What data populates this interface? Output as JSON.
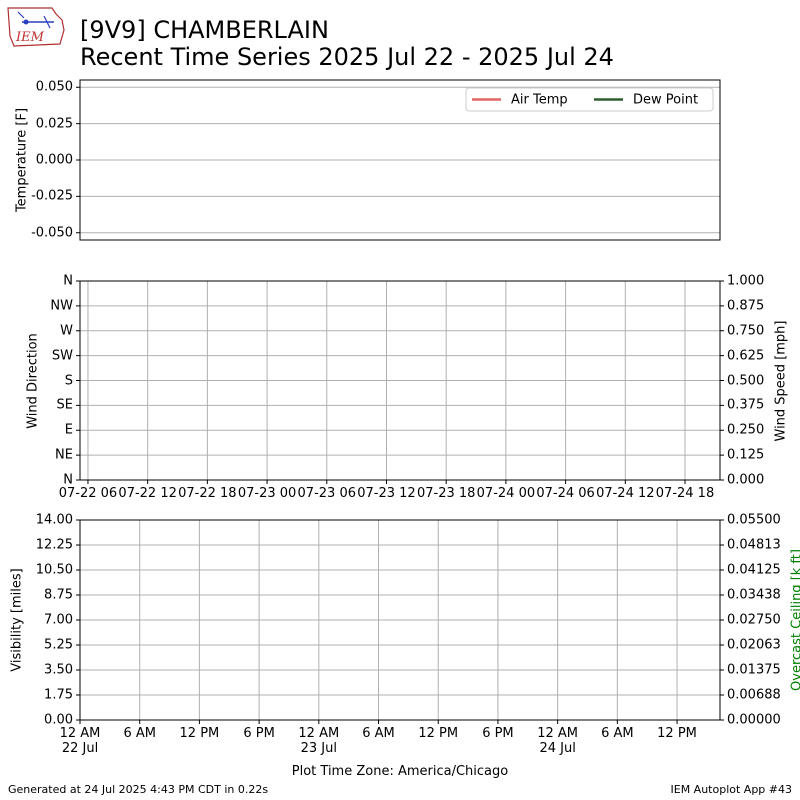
{
  "header": {
    "logo_text": "IEM",
    "title": "[9V9] CHAMBERLAIN",
    "subtitle": "Recent Time Series 2025 Jul 22 - 2025 Jul 24"
  },
  "footer": {
    "left": "Generated at 24 Jul 2025 4:43 PM CDT in 0.22s",
    "right": "IEM Autoplot App #43"
  },
  "chart_data": [
    {
      "type": "line",
      "ylabel": "Temperature [F]",
      "grid": "y",
      "legend": "upper right",
      "x": [],
      "series": [
        {
          "name": "Air Temp",
          "color": "#e06666",
          "values": []
        },
        {
          "name": "Dew Point",
          "color": "#2e5e2e",
          "values": []
        }
      ],
      "ylim": [
        -0.055,
        0.055
      ],
      "yticks": [
        {
          "value": -0.05,
          "label": "-0.050"
        },
        -0.025,
        {
          "value": 0,
          "label": "0.000"
        },
        0.025,
        {
          "value": 0.05,
          "label": "0.050"
        }
      ]
    },
    {
      "type": "line",
      "ylabel": "Wind Direction",
      "y2label": "Wind Speed [mph]",
      "grid": "both",
      "xlim": [
        "2025-07-22T05:12",
        "2025-07-24T21:31"
      ],
      "xticks": [
        {
          "value": "2025-07-22T06:00",
          "label": "07-22 06"
        },
        {
          "value": "2025-07-22T12:00",
          "label": "07-22 12"
        },
        {
          "value": "2025-07-22T18:00",
          "label": "07-22 18"
        },
        {
          "value": "2025-07-23T00:00",
          "label": "07-23 00"
        },
        {
          "value": "2025-07-23T06:00",
          "label": "07-23 06"
        },
        {
          "value": "2025-07-23T12:00",
          "label": "07-23 12"
        },
        {
          "value": "2025-07-23T18:00",
          "label": "07-23 18"
        },
        {
          "value": "2025-07-24T00:00",
          "label": "07-24 00"
        },
        {
          "value": "2025-07-24T06:00",
          "label": "07-24 06"
        },
        {
          "value": "2025-07-24T12:00",
          "label": "07-24 12"
        },
        {
          "value": "2025-07-24T18:00",
          "label": "07-24 18"
        }
      ],
      "ylim": [
        0,
        360
      ],
      "yticks": [
        {
          "value": 0,
          "label": "N"
        },
        {
          "value": 45,
          "label": "NE"
        },
        {
          "value": 90,
          "label": "E"
        },
        {
          "value": 135,
          "label": "SE"
        },
        {
          "value": 180,
          "label": "S"
        },
        {
          "value": 225,
          "label": "SW"
        },
        {
          "value": 270,
          "label": "W"
        },
        {
          "value": 315,
          "label": "NW"
        },
        {
          "value": 360,
          "label": "N"
        }
      ],
      "y2lim": [
        0,
        1
      ],
      "y2ticks": [
        {
          "value": 0,
          "label": "0.000"
        },
        0.125,
        {
          "value": 0.25,
          "label": "0.250"
        },
        0.375,
        {
          "value": 0.5,
          "label": "0.500"
        },
        0.625,
        {
          "value": 0.75,
          "label": "0.750"
        },
        0.875,
        {
          "value": 1,
          "label": "1.000"
        }
      ]
    },
    {
      "type": "line",
      "ylabel": "Visibility [miles]",
      "y2label": "Overcast Ceiling [k ft]",
      "y2label_color": "#008000",
      "xlabel": "Plot Time Zone: America/Chicago",
      "grid": "both",
      "xlim": [
        "2025-07-22T00:00",
        "2025-07-24T16:19"
      ],
      "xticks": [
        {
          "value": "2025-07-22T00:00",
          "label": "12 AM\n22 Jul"
        },
        {
          "value": "2025-07-22T06:00",
          "label": "6 AM"
        },
        {
          "value": "2025-07-22T12:00",
          "label": "12 PM"
        },
        {
          "value": "2025-07-22T18:00",
          "label": "6 PM"
        },
        {
          "value": "2025-07-23T00:00",
          "label": "12 AM\n23 Jul"
        },
        {
          "value": "2025-07-23T06:00",
          "label": "6 AM"
        },
        {
          "value": "2025-07-23T12:00",
          "label": "12 PM"
        },
        {
          "value": "2025-07-23T18:00",
          "label": "6 PM"
        },
        {
          "value": "2025-07-24T00:00",
          "label": "12 AM\n24 Jul"
        },
        {
          "value": "2025-07-24T06:00",
          "label": "6 AM"
        },
        {
          "value": "2025-07-24T12:00",
          "label": "12 PM"
        }
      ],
      "ylim": [
        0,
        14
      ],
      "yticks": [
        {
          "value": 0,
          "label": "0.00"
        },
        1.75,
        {
          "value": 3.5,
          "label": "3.50"
        },
        5.25,
        {
          "value": 7,
          "label": "7.00"
        },
        8.75,
        {
          "value": 10.5,
          "label": "10.50"
        },
        12.25,
        {
          "value": 14,
          "label": "14.00"
        }
      ],
      "y2lim": [
        0,
        0.055
      ],
      "y2ticks": [
        {
          "value": 0,
          "label": "0.00000"
        },
        {
          "value": 0.006875,
          "label": "0.00688"
        },
        {
          "value": 0.01375,
          "label": "0.01375"
        },
        {
          "value": 0.020625,
          "label": "0.02063"
        },
        {
          "value": 0.0275,
          "label": "0.02750"
        },
        {
          "value": 0.034375,
          "label": "0.03438"
        },
        {
          "value": 0.04125,
          "label": "0.04125"
        },
        {
          "value": 0.048125,
          "label": "0.04813"
        },
        {
          "value": 0.055,
          "label": "0.05500"
        }
      ]
    }
  ]
}
